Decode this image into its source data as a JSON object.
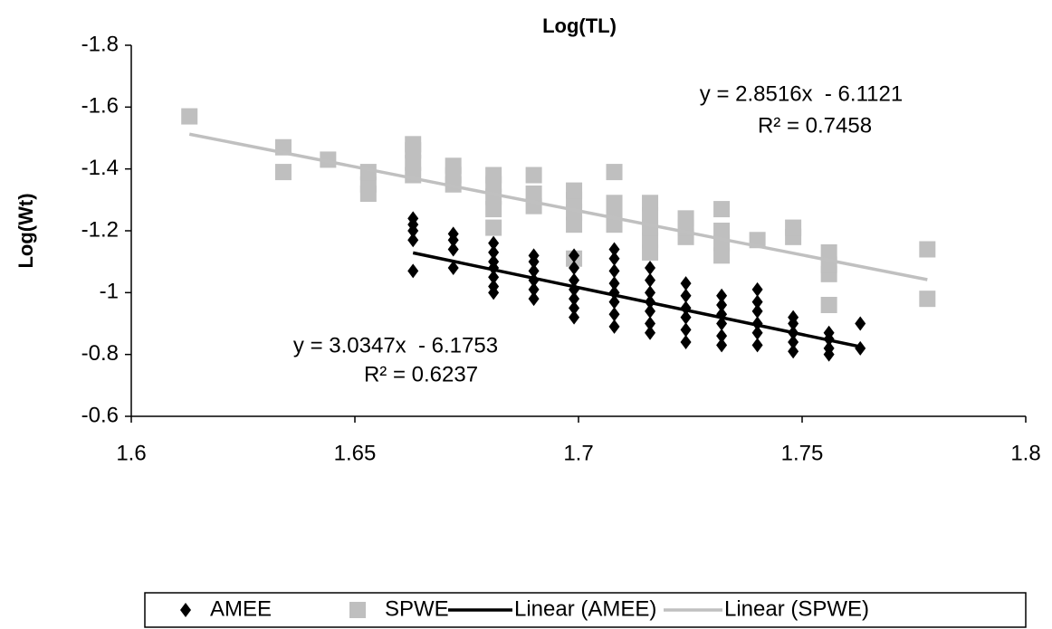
{
  "chart_data": {
    "type": "scatter",
    "title": "Log(TL)",
    "y_label": "Log(Wt)",
    "xlim": [
      1.6,
      1.8
    ],
    "xticks": [
      1.6,
      1.65,
      1.7,
      1.75,
      1.8
    ],
    "ylim": [
      -0.6,
      -1.8
    ],
    "yticks": [
      -1.8,
      -1.6,
      -1.4,
      -1.2,
      -1,
      -0.8,
      -0.6
    ],
    "legend": "bottom",
    "series": [
      {
        "name": "AMEE",
        "color": "#000000",
        "marker": "diamond",
        "x": [
          1.663,
          1.663,
          1.663,
          1.663,
          1.663,
          1.672,
          1.672,
          1.672,
          1.672,
          1.681,
          1.681,
          1.681,
          1.681,
          1.681,
          1.681,
          1.681,
          1.69,
          1.69,
          1.69,
          1.69,
          1.69,
          1.69,
          1.699,
          1.699,
          1.699,
          1.699,
          1.699,
          1.699,
          1.699,
          1.708,
          1.708,
          1.708,
          1.708,
          1.708,
          1.708,
          1.708,
          1.708,
          1.716,
          1.716,
          1.716,
          1.716,
          1.716,
          1.716,
          1.716,
          1.724,
          1.724,
          1.724,
          1.724,
          1.724,
          1.724,
          1.732,
          1.732,
          1.732,
          1.732,
          1.732,
          1.732,
          1.74,
          1.74,
          1.74,
          1.74,
          1.74,
          1.74,
          1.748,
          1.748,
          1.748,
          1.748,
          1.748,
          1.756,
          1.756,
          1.756,
          1.756,
          1.763,
          1.763
        ],
        "values": [
          -1.07,
          -1.17,
          -1.2,
          -1.22,
          -1.24,
          -1.08,
          -1.14,
          -1.17,
          -1.19,
          -1.0,
          -1.02,
          -1.05,
          -1.08,
          -1.1,
          -1.13,
          -1.16,
          -0.98,
          -1.01,
          -1.04,
          -1.07,
          -1.1,
          -1.12,
          -0.92,
          -0.95,
          -0.98,
          -1.01,
          -1.04,
          -1.08,
          -1.12,
          -0.89,
          -0.93,
          -0.97,
          -1.0,
          -1.03,
          -1.07,
          -1.11,
          -1.14,
          -0.87,
          -0.9,
          -0.94,
          -0.97,
          -1.0,
          -1.04,
          -1.08,
          -0.84,
          -0.88,
          -0.92,
          -0.95,
          -0.99,
          -1.03,
          -0.83,
          -0.86,
          -0.9,
          -0.93,
          -0.96,
          -0.99,
          -0.83,
          -0.87,
          -0.9,
          -0.94,
          -0.97,
          -1.01,
          -0.81,
          -0.84,
          -0.87,
          -0.9,
          -0.92,
          -0.8,
          -0.82,
          -0.85,
          -0.87,
          -0.82,
          -0.9
        ]
      },
      {
        "name": "SPWE",
        "color": "#bfbfbf",
        "marker": "square",
        "x": [
          1.613,
          1.634,
          1.634,
          1.644,
          1.653,
          1.653,
          1.653,
          1.663,
          1.663,
          1.663,
          1.663,
          1.672,
          1.672,
          1.672,
          1.681,
          1.681,
          1.681,
          1.681,
          1.681,
          1.69,
          1.69,
          1.69,
          1.699,
          1.699,
          1.699,
          1.699,
          1.699,
          1.708,
          1.708,
          1.708,
          1.708,
          1.716,
          1.716,
          1.716,
          1.716,
          1.716,
          1.724,
          1.724,
          1.724,
          1.732,
          1.732,
          1.732,
          1.732,
          1.74,
          1.748,
          1.748,
          1.756,
          1.756,
          1.756,
          1.756,
          1.778,
          1.778
        ],
        "values": [
          -1.57,
          -1.39,
          -1.47,
          -1.43,
          -1.32,
          -1.35,
          -1.39,
          -1.38,
          -1.42,
          -1.46,
          -1.48,
          -1.35,
          -1.38,
          -1.41,
          -1.21,
          -1.27,
          -1.31,
          -1.35,
          -1.38,
          -1.28,
          -1.32,
          -1.38,
          -1.11,
          -1.22,
          -1.26,
          -1.3,
          -1.33,
          -1.22,
          -1.26,
          -1.29,
          -1.39,
          -1.13,
          -1.17,
          -1.21,
          -1.25,
          -1.29,
          -1.18,
          -1.21,
          -1.24,
          -1.12,
          -1.16,
          -1.2,
          -1.27,
          -1.17,
          -1.18,
          -1.21,
          -0.96,
          -1.06,
          -1.09,
          -1.13,
          -0.98,
          -1.14
        ]
      },
      {
        "name": "Linear (AMEE)",
        "color": "#000000",
        "marker": "line",
        "x": [
          1.663,
          1.763
        ],
        "values": [
          -1.1286,
          -0.8251
        ]
      },
      {
        "name": "Linear (SPWE)",
        "color": "#c0c0c0",
        "marker": "line",
        "x": [
          1.613,
          1.778
        ],
        "values": [
          -1.5125,
          -1.042
        ]
      }
    ],
    "annotations": [
      "y = 2.8516x  - 6.1121",
      "R² = 0.7458",
      "y = 3.0347x  - 6.1753",
      "R² = 0.6237"
    ]
  }
}
